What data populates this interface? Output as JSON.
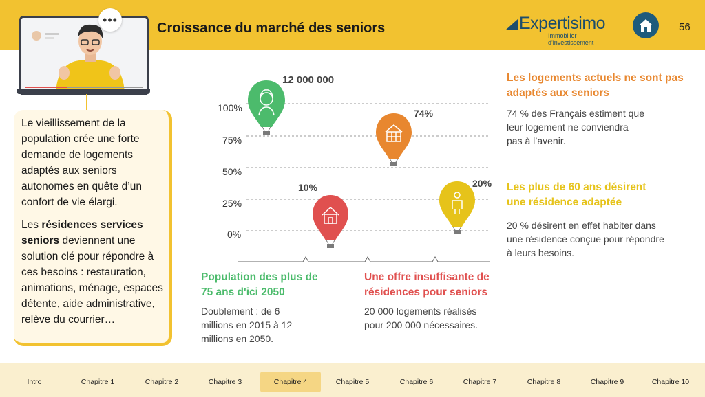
{
  "header": {
    "title": "Croissance du marché des seniors",
    "page_number": "56"
  },
  "logo": {
    "name": "Expertisimo",
    "tagline": "Immobilier d'investissement"
  },
  "left_box": {
    "p1": "Le vieillissement de la population crée une forte demande de logements adaptés aux seniors autonomes en quête d’un confort de vie élargi.",
    "p2_pre": "Les ",
    "p2_bold": "résidences services seniors",
    "p2_post": " deviennent une solution clé pour répondre à ces besoins : restauration, animations, ménage, espaces détente, aide administrative, relève du courrier…"
  },
  "chart_data": {
    "type": "scatter",
    "y_ticks": [
      "100%",
      "75%",
      "50%",
      "25%",
      "0%"
    ],
    "points": [
      {
        "label": "12 000 000",
        "icon": "senior-face-icon",
        "color": "#4cbb6c"
      },
      {
        "label": "10%",
        "value": 10,
        "icon": "house-icon",
        "color": "#e0504f"
      },
      {
        "label": "74%",
        "value": 74,
        "icon": "building-icon",
        "color": "#e8872f"
      },
      {
        "label": "20%",
        "value": 20,
        "icon": "person-icon",
        "color": "#e6c31a"
      }
    ]
  },
  "blocks": {
    "population": {
      "title": "Population des plus de 75 ans d'ici 2050",
      "body": "Doublement : de 6 millions en 2015 à 12 millions en 2050."
    },
    "offre": {
      "title": "Une offre insuffisante de résidences pour seniors",
      "body": "20 000 logements réalisés  pour 200 000 nécessaires."
    },
    "logements": {
      "title": "Les logements actuels ne sont pas adaptés aux seniors",
      "body": "74 % des Français estiment que leur logement ne conviendra pas à l’avenir."
    },
    "residence": {
      "title": "Les plus de 60 ans désirent une résidence adaptée",
      "body": "20 % désirent en effet habiter dans une résidence conçue pour répondre à leurs besoins."
    }
  },
  "nav": {
    "items": [
      "Intro",
      "Chapitre 1",
      "Chapitre 2",
      "Chapitre 3",
      "Chapitre 4",
      "Chapitre 5",
      "Chapitre 6",
      "Chapitre 7",
      "Chapitre 8",
      "Chapitre 9",
      "Chapitre 10"
    ],
    "active": "Chapitre 4"
  },
  "colors": {
    "header": "#f2c230",
    "logo": "#1d4d6b",
    "nav_bg": "#faefcf",
    "nav_active": "#f5d684"
  }
}
